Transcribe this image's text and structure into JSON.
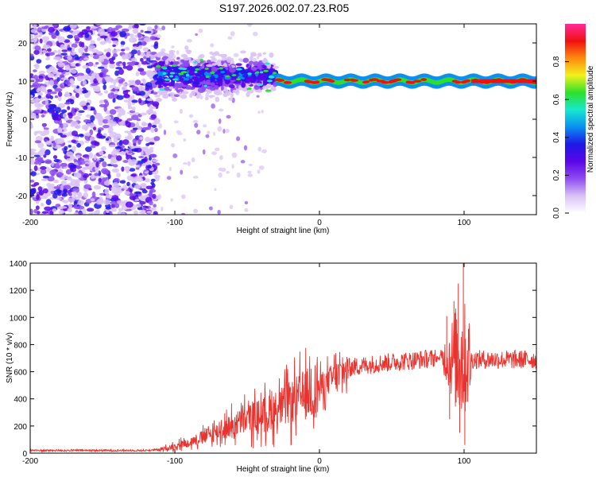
{
  "title": "S197.2026.002.07.23.R05",
  "colors": {
    "snr_line": "#e8332e",
    "axis": "#000000",
    "colormap": [
      "#ffffff",
      "#d9c2f5",
      "#8e4cf0",
      "#5a06e8",
      "#1f18e6",
      "#0a8ff2",
      "#18e8d0",
      "#2de02a",
      "#f2f21c",
      "#ff8a10",
      "#f01010",
      "#ff2a9a"
    ]
  },
  "chart_data": [
    {
      "type": "heatmap",
      "name": "spectrogram",
      "xlabel": "Height of straight line (km)",
      "ylabel": "Frequency (Hz)",
      "xlim": [
        -200,
        150
      ],
      "ylim": [
        -25,
        25
      ],
      "xticks": [
        -200,
        -100,
        0,
        100
      ],
      "yticks": [
        -20,
        -10,
        0,
        10,
        20
      ],
      "colorbar": {
        "label": "Normalized spectral amplitude",
        "range": [
          0,
          1
        ],
        "ticks": [
          0.0,
          0.2,
          0.4,
          0.6,
          0.8
        ]
      },
      "features": [
        {
          "x_range": [
            -200,
            -112
          ],
          "y_range": [
            -25,
            25
          ],
          "amplitude": 0.15,
          "pattern": "scattered noise"
        },
        {
          "x_range": [
            -112,
            -30
          ],
          "y_center": 11.5,
          "spread_hz": 5,
          "amplitude": 0.3,
          "pattern": "broadening signal"
        },
        {
          "x_range": [
            -30,
            150
          ],
          "y_center": 10,
          "spread_hz": 1.5,
          "amplitude": 0.9,
          "pattern": "narrow carrier line"
        }
      ]
    },
    {
      "type": "line",
      "name": "snr",
      "xlabel": "Height of straight line (km)",
      "ylabel": "SNR (10 * v/v)",
      "xlim": [
        -200,
        150
      ],
      "ylim": [
        0,
        1400
      ],
      "xticks": [
        -200,
        -100,
        0,
        100
      ],
      "yticks": [
        0,
        200,
        400,
        600,
        800,
        1000,
        1200,
        1400
      ],
      "envelope": {
        "x": [
          -200,
          -120,
          -110,
          -90,
          -70,
          -50,
          -35,
          -20,
          -10,
          0,
          10,
          20,
          40,
          60,
          80,
          90,
          100,
          110,
          130,
          150
        ],
        "y": [
          20,
          20,
          25,
          80,
          160,
          250,
          300,
          370,
          430,
          480,
          560,
          630,
          660,
          680,
          700,
          700,
          690,
          690,
          690,
          690
        ]
      }
    }
  ]
}
